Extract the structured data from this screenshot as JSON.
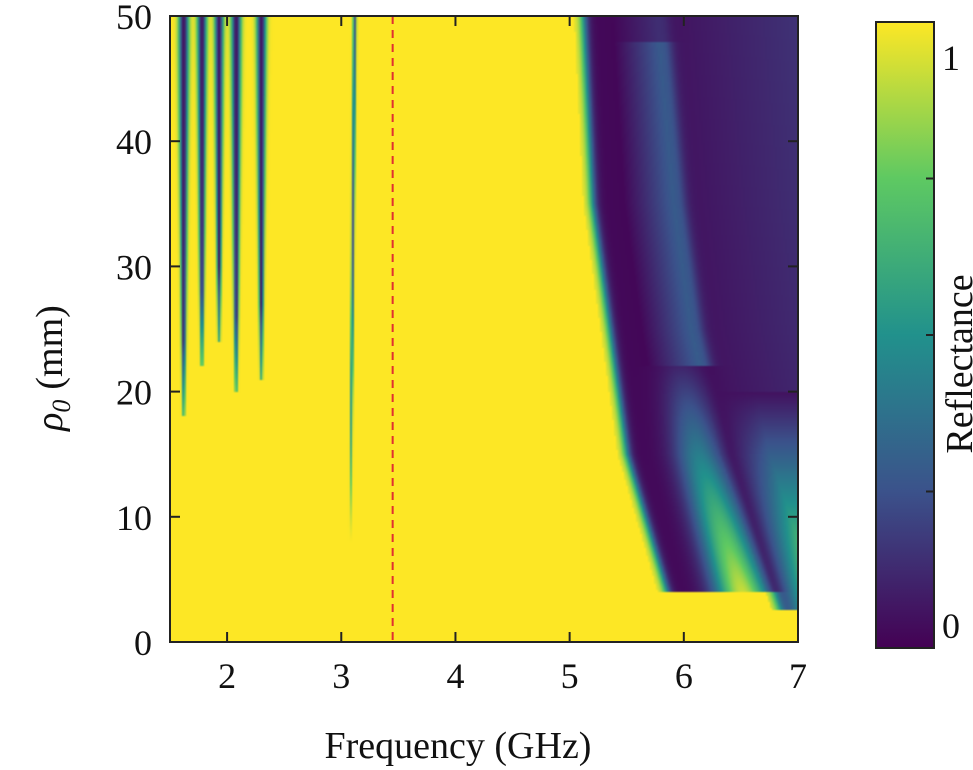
{
  "chart_data": {
    "type": "heatmap",
    "xlabel": "Frequency (GHz)",
    "ylabel": "ρ",
    "ylabel_subscript": "0",
    "ylabel_unit": "(mm)",
    "colorbar_label": "Reflectance",
    "xlim": [
      1.5,
      7
    ],
    "ylim": [
      0,
      50
    ],
    "x_ticks": [
      2,
      3,
      4,
      5,
      6,
      7
    ],
    "y_ticks": [
      0,
      10,
      20,
      30,
      40,
      50
    ],
    "zlim": [
      0,
      1
    ],
    "colorbar_ticks": [
      0,
      1
    ],
    "colormap": "viridis",
    "colormap_colors": [
      "#440154",
      "#3b528b",
      "#21918c",
      "#5ec962",
      "#fde725"
    ],
    "reference_line": {
      "x": 3.45,
      "style": "dashed",
      "color": "#e03030"
    },
    "features": {
      "low_frequency_dips_x": [
        1.62,
        1.78,
        1.93,
        2.08,
        2.3
      ],
      "mid_resonance": {
        "x": 3.1,
        "rho_range": [
          8,
          50
        ]
      },
      "band_edge_1": [
        [
          5.12,
          50
        ],
        [
          5.2,
          35
        ],
        [
          5.35,
          25
        ],
        [
          5.5,
          15
        ],
        [
          5.85,
          4
        ]
      ],
      "band_edge_2": [
        [
          5.85,
          50
        ],
        [
          6.0,
          35
        ],
        [
          6.15,
          25
        ],
        [
          6.4,
          15
        ],
        [
          6.85,
          2.5
        ]
      ]
    }
  }
}
